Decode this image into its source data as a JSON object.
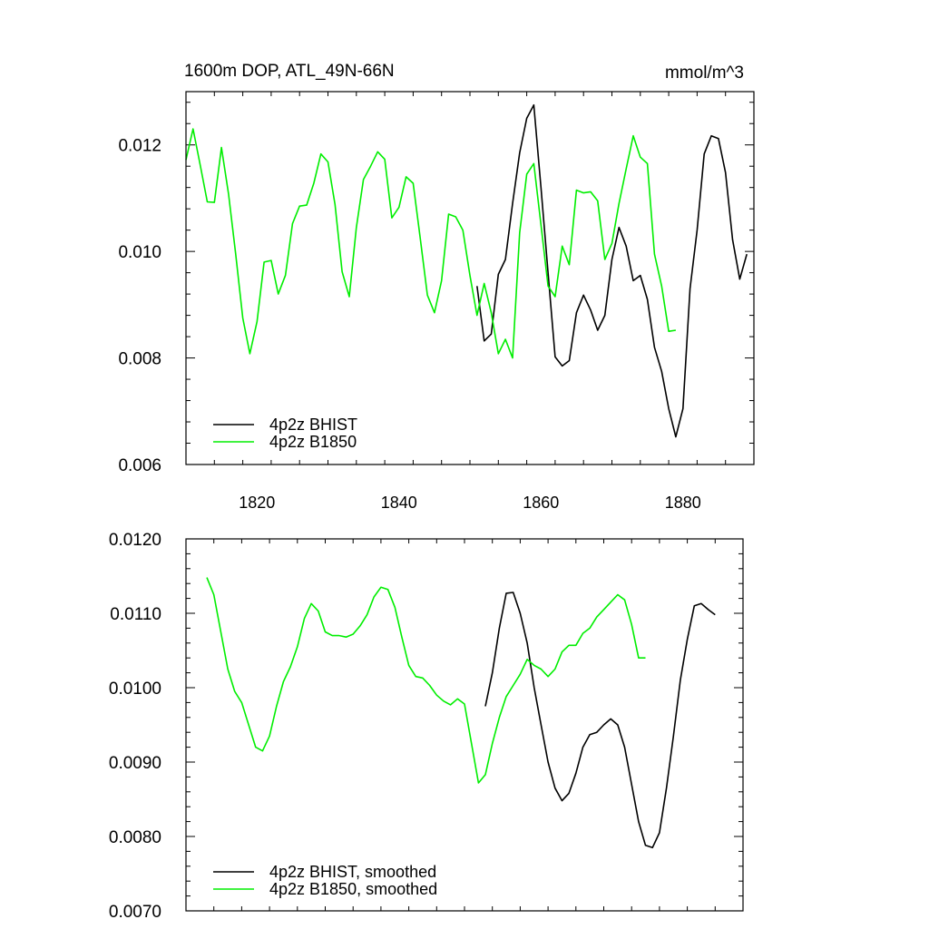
{
  "chart_data": [
    {
      "type": "line",
      "title": "1600m DOP, ATL_49N-66N",
      "units": "mmol/m^3",
      "xlim": [
        1810,
        1890
      ],
      "ylim": [
        0.006,
        0.013
      ],
      "xticks": [
        1820,
        1840,
        1860,
        1880
      ],
      "yticks": [
        0.006,
        0.008,
        0.01,
        0.012
      ],
      "ytick_labels": [
        "0.006",
        "0.008",
        "0.010",
        "0.012"
      ],
      "legend_position": "bottom-left",
      "series": [
        {
          "name": "4p2z BHIST",
          "color": "#000000",
          "x": [
            1851,
            1852,
            1853,
            1854,
            1855,
            1856,
            1857,
            1858,
            1859,
            1860,
            1861,
            1862,
            1863,
            1864,
            1865,
            1866,
            1867,
            1868,
            1869,
            1870,
            1871,
            1872,
            1873,
            1874,
            1875,
            1876,
            1877,
            1878,
            1879,
            1880,
            1881,
            1882,
            1883,
            1884,
            1885,
            1886,
            1887,
            1888,
            1889
          ],
          "y": [
            0.00935,
            0.00832,
            0.00845,
            0.00957,
            0.00985,
            0.0109,
            0.01185,
            0.0125,
            0.01275,
            0.0112,
            0.0096,
            0.00802,
            0.00785,
            0.00795,
            0.00885,
            0.00918,
            0.0089,
            0.00852,
            0.0088,
            0.00985,
            0.01045,
            0.0101,
            0.00945,
            0.00955,
            0.0091,
            0.0082,
            0.00775,
            0.00705,
            0.00652,
            0.00705,
            0.0093,
            0.0104,
            0.01183,
            0.01217,
            0.01212,
            0.01148,
            0.01022,
            0.00948,
            0.00995
          ]
        },
        {
          "name": "4p2z B1850",
          "color": "#00ee00",
          "x": [
            1810,
            1811,
            1812,
            1813,
            1814,
            1815,
            1816,
            1817,
            1818,
            1819,
            1820,
            1821,
            1822,
            1823,
            1824,
            1825,
            1826,
            1827,
            1828,
            1829,
            1830,
            1831,
            1832,
            1833,
            1834,
            1835,
            1836,
            1837,
            1838,
            1839,
            1840,
            1841,
            1842,
            1843,
            1844,
            1845,
            1846,
            1847,
            1848,
            1849,
            1850,
            1851,
            1852,
            1853,
            1854,
            1855,
            1856,
            1857,
            1858,
            1859,
            1860,
            1861,
            1862,
            1863,
            1864,
            1865,
            1866,
            1867,
            1868,
            1869,
            1870,
            1871,
            1872,
            1873,
            1874,
            1875,
            1876,
            1877,
            1878,
            1879
          ],
          "y": [
            0.01172,
            0.0123,
            0.01162,
            0.01093,
            0.01092,
            0.01195,
            0.01108,
            0.00995,
            0.00875,
            0.00808,
            0.00868,
            0.0098,
            0.00983,
            0.0092,
            0.00955,
            0.01052,
            0.01085,
            0.01087,
            0.01128,
            0.01183,
            0.01168,
            0.01088,
            0.00962,
            0.00915,
            0.01045,
            0.01135,
            0.0116,
            0.01187,
            0.01173,
            0.01063,
            0.01083,
            0.0114,
            0.01128,
            0.01025,
            0.00918,
            0.00885,
            0.00945,
            0.0107,
            0.01065,
            0.0104,
            0.00955,
            0.0088,
            0.0094,
            0.00885,
            0.00808,
            0.00835,
            0.008,
            0.01035,
            0.01145,
            0.01165,
            0.0105,
            0.00935,
            0.00915,
            0.0101,
            0.00975,
            0.01115,
            0.0111,
            0.01112,
            0.01095,
            0.00985,
            0.01015,
            0.0109,
            0.01155,
            0.01217,
            0.01177,
            0.01165,
            0.00995,
            0.00935,
            0.0085,
            0.00852
          ]
        }
      ]
    },
    {
      "type": "line",
      "xlim": [
        1810,
        1890
      ],
      "ylim": [
        0.007,
        0.012
      ],
      "xticks": [
        1820,
        1840,
        1860,
        1880
      ],
      "yticks": [
        0.007,
        0.008,
        0.009,
        0.01,
        0.011,
        0.012
      ],
      "ytick_labels": [
        "0.0070",
        "0.0080",
        "0.0090",
        "0.0100",
        "0.0110",
        "0.0120"
      ],
      "legend_position": "bottom-left",
      "series": [
        {
          "name": "4p2z BHIST, smoothed",
          "color": "#000000",
          "x": [
            1853,
            1854,
            1855,
            1856,
            1857,
            1858,
            1859,
            1860,
            1861,
            1862,
            1863,
            1864,
            1865,
            1866,
            1867,
            1868,
            1869,
            1870,
            1871,
            1872,
            1873,
            1874,
            1875,
            1876,
            1877,
            1878,
            1879,
            1880,
            1881,
            1882,
            1883,
            1884,
            1885,
            1886
          ],
          "y": [
            0.00975,
            0.0102,
            0.0108,
            0.01127,
            0.01128,
            0.011,
            0.0106,
            0.01,
            0.0095,
            0.009,
            0.00865,
            0.00848,
            0.00858,
            0.00885,
            0.0092,
            0.00937,
            0.0094,
            0.0095,
            0.00958,
            0.0095,
            0.0092,
            0.0087,
            0.0082,
            0.00788,
            0.00785,
            0.00805,
            0.00865,
            0.00935,
            0.0101,
            0.01065,
            0.0111,
            0.01113,
            0.01105,
            0.01098
          ]
        },
        {
          "name": "4p2z B1850, smoothed",
          "color": "#00ee00",
          "x": [
            1813,
            1814,
            1815,
            1816,
            1817,
            1818,
            1819,
            1820,
            1821,
            1822,
            1823,
            1824,
            1825,
            1826,
            1827,
            1828,
            1829,
            1830,
            1831,
            1832,
            1833,
            1834,
            1835,
            1836,
            1837,
            1838,
            1839,
            1840,
            1841,
            1842,
            1843,
            1844,
            1845,
            1846,
            1847,
            1848,
            1849,
            1850,
            1851,
            1852,
            1853,
            1854,
            1855,
            1856,
            1857,
            1858,
            1859,
            1860,
            1861,
            1862,
            1863,
            1864,
            1865,
            1866,
            1867,
            1868,
            1869,
            1870,
            1871,
            1872,
            1873,
            1874,
            1875,
            1876
          ],
          "y": [
            0.01148,
            0.01125,
            0.01075,
            0.01025,
            0.00995,
            0.0098,
            0.0095,
            0.0092,
            0.00915,
            0.00935,
            0.00975,
            0.01008,
            0.01028,
            0.01055,
            0.01093,
            0.01113,
            0.01103,
            0.01075,
            0.0107,
            0.0107,
            0.01068,
            0.01072,
            0.01083,
            0.01098,
            0.01122,
            0.01135,
            0.01132,
            0.01108,
            0.01068,
            0.0103,
            0.01015,
            0.01013,
            0.01003,
            0.0099,
            0.00982,
            0.00977,
            0.00985,
            0.00978,
            0.00925,
            0.00872,
            0.00883,
            0.00925,
            0.0096,
            0.00988,
            0.01003,
            0.01018,
            0.01038,
            0.0103,
            0.01025,
            0.01015,
            0.01025,
            0.01048,
            0.01057,
            0.01057,
            0.01073,
            0.0108,
            0.01095,
            0.01105,
            0.01115,
            0.01125,
            0.01118,
            0.01085,
            0.0104,
            0.0104
          ]
        }
      ]
    }
  ]
}
